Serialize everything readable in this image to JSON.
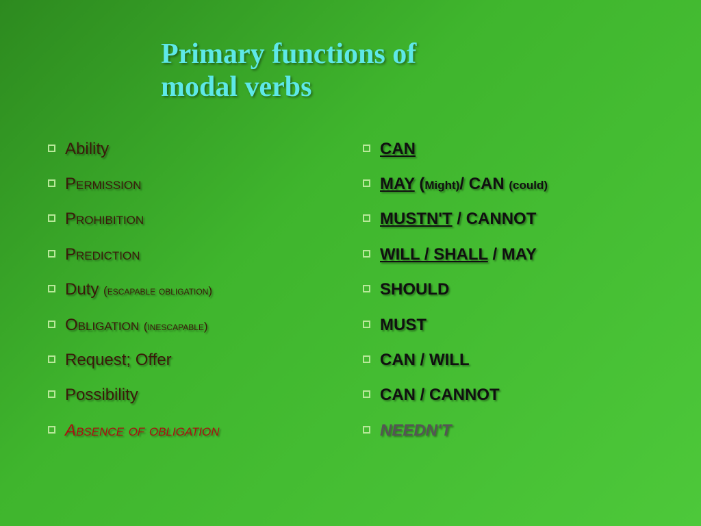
{
  "title_line1": "Primary functions of",
  "title_line2": "modal verbs",
  "left": [
    {
      "text": "Ability",
      "style": "dark"
    },
    {
      "text": "Permission",
      "style": "dark",
      "smallcaps": true
    },
    {
      "text": "Prohibition",
      "style": "dark",
      "smallcaps": true
    },
    {
      "text": "Prediction",
      "style": "dark",
      "smallcaps": true
    },
    {
      "parts": [
        {
          "t": "Duty ",
          "cls": ""
        },
        {
          "t": "(",
          "cls": "small"
        },
        {
          "t": "escapable obligation",
          "cls": "small smcaps"
        },
        {
          "t": ")",
          "cls": "small"
        }
      ],
      "style": "dark"
    },
    {
      "parts": [
        {
          "t": "Obligation ",
          "cls": "smcaps"
        },
        {
          "t": "(inescapable)",
          "cls": "small smcaps"
        }
      ],
      "style": "dark"
    },
    {
      "text": "Request; Offer",
      "style": "dark"
    },
    {
      "text": "Possibility",
      "style": "dark"
    },
    {
      "text": "Absence of obligation",
      "style": "red",
      "smallcaps": true
    }
  ],
  "right": [
    {
      "parts": [
        {
          "t": "CAN",
          "cls": "u"
        }
      ],
      "style": "black"
    },
    {
      "parts": [
        {
          "t": "MAY",
          "cls": "u"
        },
        {
          "t": " (",
          "cls": ""
        },
        {
          "t": "Might",
          "cls": "small"
        },
        {
          "t": ")",
          "cls": "small"
        },
        {
          "t": "/ CAN ",
          "cls": ""
        },
        {
          "t": "(could)",
          "cls": "small"
        }
      ],
      "style": "black"
    },
    {
      "parts": [
        {
          "t": "MUSTN'T",
          "cls": "u"
        },
        {
          "t": " / CANNOT",
          "cls": ""
        }
      ],
      "style": "black"
    },
    {
      "parts": [
        {
          "t": "WILL / SHALL",
          "cls": "u"
        },
        {
          "t": " / MAY",
          "cls": ""
        }
      ],
      "style": "black"
    },
    {
      "text": "SHOULD",
      "style": "black"
    },
    {
      "text": "MUST",
      "style": "black"
    },
    {
      "text": "CAN / WILL",
      "style": "black"
    },
    {
      "text": "CAN / CANNOT",
      "style": "black"
    },
    {
      "text": "NEEDN'T",
      "style": "gray"
    }
  ],
  "colors": {
    "bullet_border": "#b8e89a",
    "title_color": "#5ee8e8",
    "bg_start": "#2d8a1f",
    "bg_end": "#4dc83a"
  }
}
